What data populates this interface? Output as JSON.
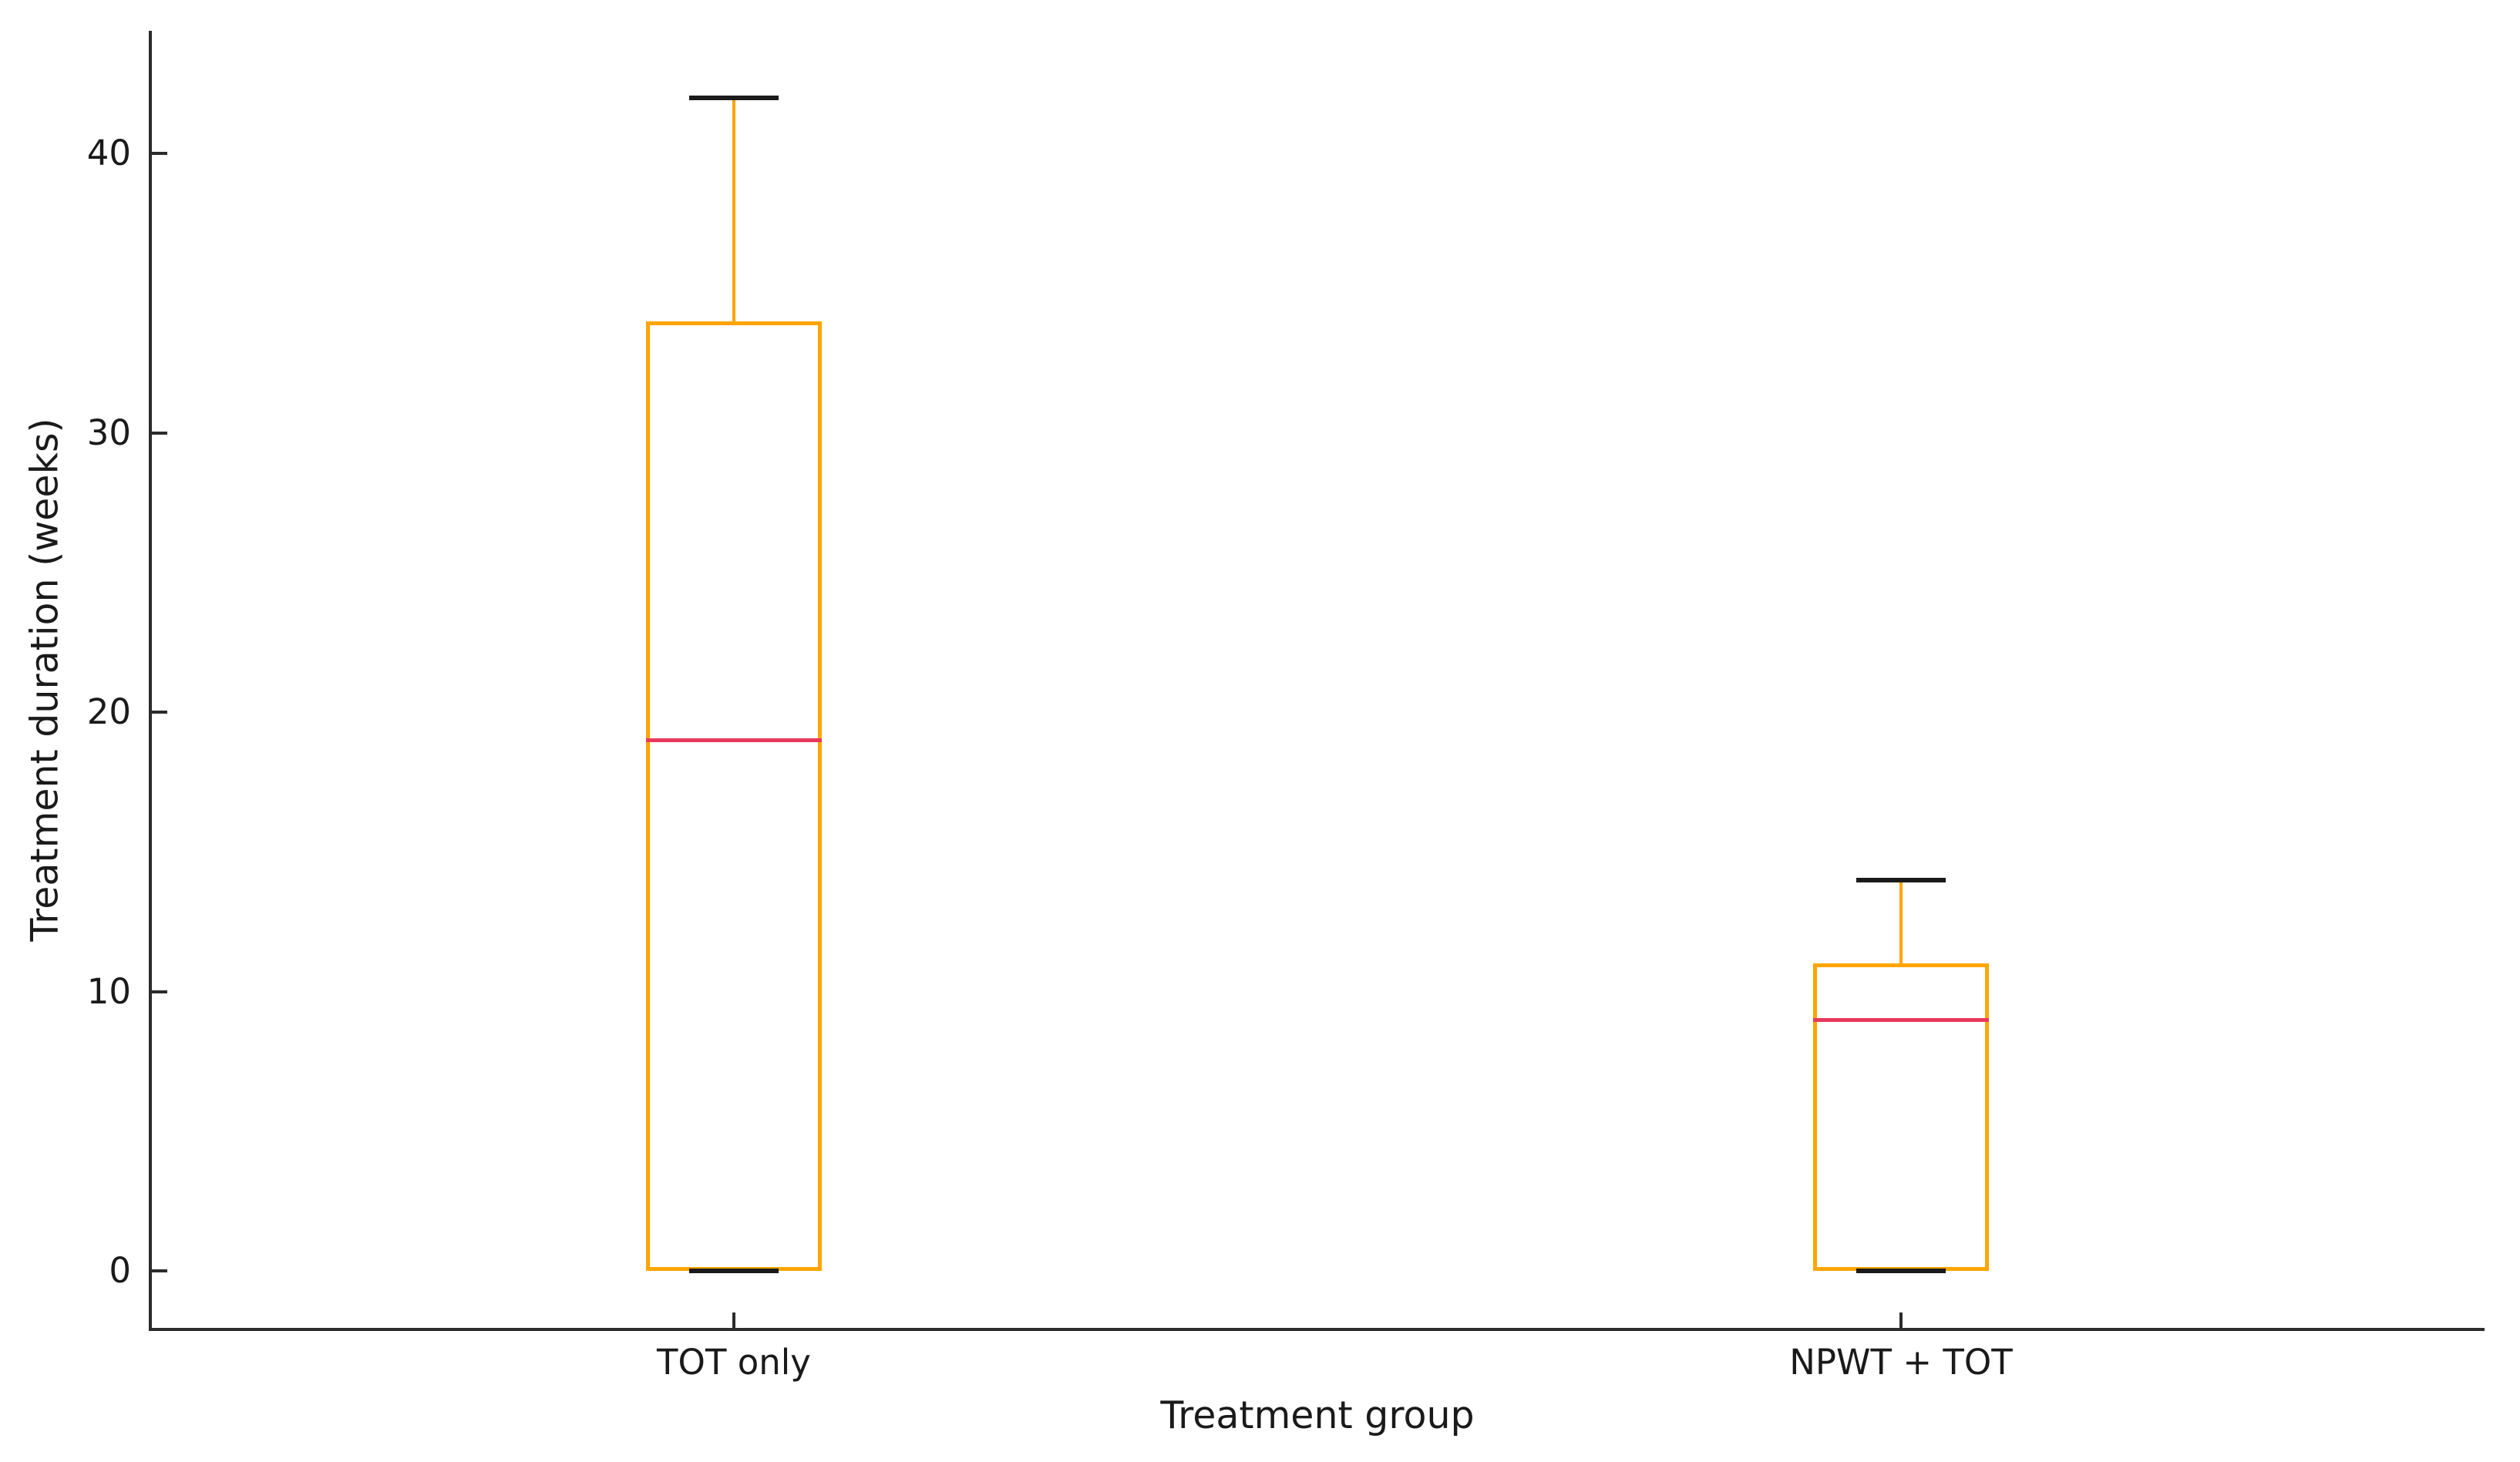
{
  "chart_data": {
    "type": "boxplot",
    "title": "",
    "xlabel": "Treatment group",
    "ylabel": "Treatment duration (weeks)",
    "categories": [
      "TOT only",
      "NPWT + TOT"
    ],
    "series": [
      {
        "name": "TOT only",
        "whisker_low": 0,
        "q1": 0,
        "median": 19,
        "q3": 34,
        "whisker_high": 42
      },
      {
        "name": "NPWT + TOT",
        "whisker_low": 0,
        "q1": 0,
        "median": 9,
        "q3": 11,
        "whisker_high": 14
      }
    ],
    "y_ticks": [
      0,
      10,
      20,
      30,
      40
    ],
    "ylim": [
      -2.1,
      44.4
    ],
    "xlim": [
      0.5,
      2.5
    ],
    "grid": false,
    "legend": null,
    "colors": {
      "box": "#FFA500",
      "whisker": "#FFA500",
      "median": "#E8395A",
      "cap": "#1a1a1a",
      "axis": "#2b2b2b",
      "text": "#1a1a1a"
    }
  }
}
